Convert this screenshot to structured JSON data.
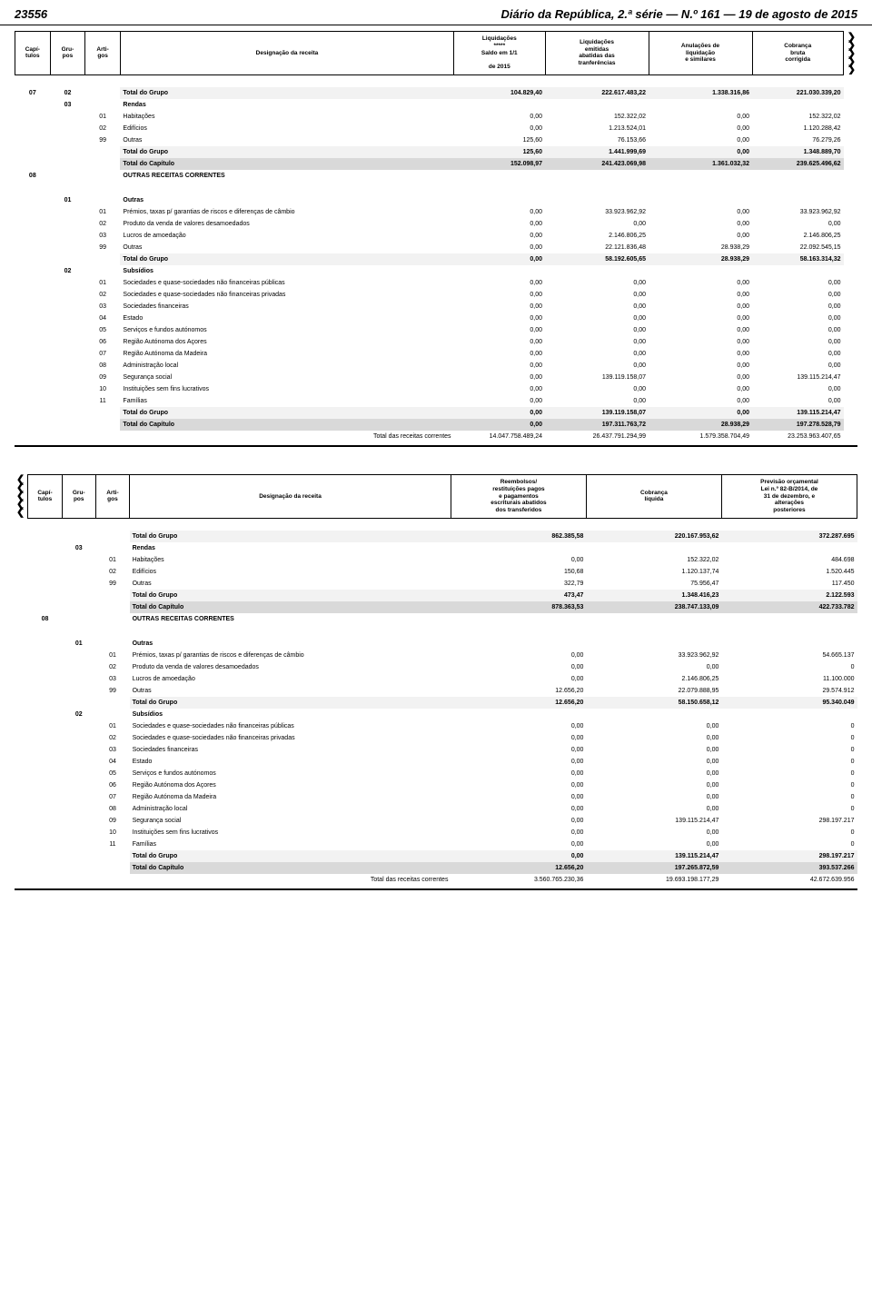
{
  "page": {
    "number": "23556",
    "title": "Diário da República, 2.ª série — N.º 161 — 19 de agosto de 2015"
  },
  "colors": {
    "row_total_grupo": "#f2f2f2",
    "row_total_cap": "#d9d9d9",
    "text": "#000000",
    "bg": "#ffffff"
  },
  "header1": {
    "cap": "Capí-\ntulos",
    "gru": "Gru-\npos",
    "art": "Arti-\ngos",
    "des": "Designação da receita",
    "colA": "Liquidações\n*****\nSaldo em 1/1\n\nde 2015",
    "colB": "Liquidações\nemitidas\nabatidas das\ntranferências",
    "colC": "Anulações de\nliquidação\ne similares",
    "colD": "Cobrança\nbruta\ncorrigida"
  },
  "header2": {
    "cap": "Capí-\ntulos",
    "gru": "Gru-\npos",
    "art": "Arti-\ngos",
    "des": "Designação da receita",
    "colA": "Reembolsos/\nrestituições pagos\ne pagamentos\nescriturais abatidos\ndos transferidos",
    "colB": "Cobrança\nlíquida",
    "colC": "Previsão orçamental\nLei n.º 82-B/2014, de\n31 de dezembro, e\nalterações\nposteriores"
  },
  "labels": {
    "total_grupo": "Total do Grupo",
    "total_cap": "Total do Capítulo",
    "total_rc": "Total das receitas correntes",
    "rendas": "Rendas",
    "habitacoes": "Habitações",
    "edificios": "Edifícios",
    "outras": "Outras",
    "orc": "OUTRAS RECEITAS CORRENTES",
    "premios": "Prémios, taxas p/ garantias de riscos e diferenças de câmbio",
    "produto": "Produto da venda de valores desamoedados",
    "lucros": "Lucros de amoedação",
    "subsidios": "Subsídios",
    "s1": "Sociedades e quase-sociedades não financeiras públicas",
    "s2": "Sociedades e quase-sociedades não financeiras privadas",
    "s3": "Sociedades financeiras",
    "s4": "Estado",
    "s5": "Serviços e fundos autónomos",
    "s6": "Região Autónoma dos Açores",
    "s7": "Região Autónoma da Madeira",
    "s8": "Administração local",
    "s9": "Segurança social",
    "s10": "Instituições sem fins lucrativos",
    "s11": "Famílias"
  },
  "t1": {
    "r0702_tg": [
      "104.829,40",
      "222.617.483,22",
      "1.338.316,86",
      "221.030.339,20"
    ],
    "r03_01": [
      "0,00",
      "152.322,02",
      "0,00",
      "152.322,02"
    ],
    "r03_02": [
      "0,00",
      "1.213.524,01",
      "0,00",
      "1.120.288,42"
    ],
    "r03_99": [
      "125,60",
      "76.153,66",
      "0,00",
      "76.279,26"
    ],
    "r03_tg": [
      "125,60",
      "1.441.999,69",
      "0,00",
      "1.348.889,70"
    ],
    "tc": [
      "152.098,97",
      "241.423.069,98",
      "1.361.032,32",
      "239.625.496,62"
    ],
    "r01_01": [
      "0,00",
      "33.923.962,92",
      "0,00",
      "33.923.962,92"
    ],
    "r01_02": [
      "0,00",
      "0,00",
      "0,00",
      "0,00"
    ],
    "r01_03": [
      "0,00",
      "2.146.806,25",
      "0,00",
      "2.146.806,25"
    ],
    "r01_99": [
      "0,00",
      "22.121.836,48",
      "28.938,29",
      "22.092.545,15"
    ],
    "r01_tg": [
      "0,00",
      "58.192.605,65",
      "28.938,29",
      "58.163.314,32"
    ],
    "r02_01": [
      "0,00",
      "0,00",
      "0,00",
      "0,00"
    ],
    "r02_02": [
      "0,00",
      "0,00",
      "0,00",
      "0,00"
    ],
    "r02_03": [
      "0,00",
      "0,00",
      "0,00",
      "0,00"
    ],
    "r02_04": [
      "0,00",
      "0,00",
      "0,00",
      "0,00"
    ],
    "r02_05": [
      "0,00",
      "0,00",
      "0,00",
      "0,00"
    ],
    "r02_06": [
      "0,00",
      "0,00",
      "0,00",
      "0,00"
    ],
    "r02_07": [
      "0,00",
      "0,00",
      "0,00",
      "0,00"
    ],
    "r02_08": [
      "0,00",
      "0,00",
      "0,00",
      "0,00"
    ],
    "r02_09": [
      "0,00",
      "139.119.158,07",
      "0,00",
      "139.115.214,47"
    ],
    "r02_10": [
      "0,00",
      "0,00",
      "0,00",
      "0,00"
    ],
    "r02_11": [
      "0,00",
      "0,00",
      "0,00",
      "0,00"
    ],
    "r02_tg": [
      "0,00",
      "139.119.158,07",
      "0,00",
      "139.115.214,47"
    ],
    "tc2": [
      "0,00",
      "197.311.763,72",
      "28.938,29",
      "197.278.528,79"
    ],
    "trc": [
      "14.047.758.489,24",
      "26.437.791.294,99",
      "1.579.358.704,49",
      "23.253.963.407,65"
    ]
  },
  "t2": {
    "tg0": [
      "862.385,58",
      "220.167.953,62",
      "372.287.695"
    ],
    "r03_01": [
      "0,00",
      "152.322,02",
      "484.698"
    ],
    "r03_02": [
      "150,68",
      "1.120.137,74",
      "1.520.445"
    ],
    "r03_99": [
      "322,79",
      "75.956,47",
      "117.450"
    ],
    "r03_tg": [
      "473,47",
      "1.348.416,23",
      "2.122.593"
    ],
    "tc": [
      "878.363,53",
      "238.747.133,09",
      "422.733.782"
    ],
    "r01_01": [
      "0,00",
      "33.923.962,92",
      "54.665.137"
    ],
    "r01_02": [
      "0,00",
      "0,00",
      "0"
    ],
    "r01_03": [
      "0,00",
      "2.146.806,25",
      "11.100.000"
    ],
    "r01_99": [
      "12.656,20",
      "22.079.888,95",
      "29.574.912"
    ],
    "r01_tg": [
      "12.656,20",
      "58.150.658,12",
      "95.340.049"
    ],
    "r02_01": [
      "0,00",
      "0,00",
      "0"
    ],
    "r02_02": [
      "0,00",
      "0,00",
      "0"
    ],
    "r02_03": [
      "0,00",
      "0,00",
      "0"
    ],
    "r02_04": [
      "0,00",
      "0,00",
      "0"
    ],
    "r02_05": [
      "0,00",
      "0,00",
      "0"
    ],
    "r02_06": [
      "0,00",
      "0,00",
      "0"
    ],
    "r02_07": [
      "0,00",
      "0,00",
      "0"
    ],
    "r02_08": [
      "0,00",
      "0,00",
      "0"
    ],
    "r02_09": [
      "0,00",
      "139.115.214,47",
      "298.197.217"
    ],
    "r02_10": [
      "0,00",
      "0,00",
      "0"
    ],
    "r02_11": [
      "0,00",
      "0,00",
      "0"
    ],
    "r02_tg": [
      "0,00",
      "139.115.214,47",
      "298.197.217"
    ],
    "tc2": [
      "12.656,20",
      "197.265.872,59",
      "393.537.266"
    ],
    "trc": [
      "3.560.765.230,36",
      "19.693.198.177,29",
      "42.672.639.956"
    ]
  }
}
